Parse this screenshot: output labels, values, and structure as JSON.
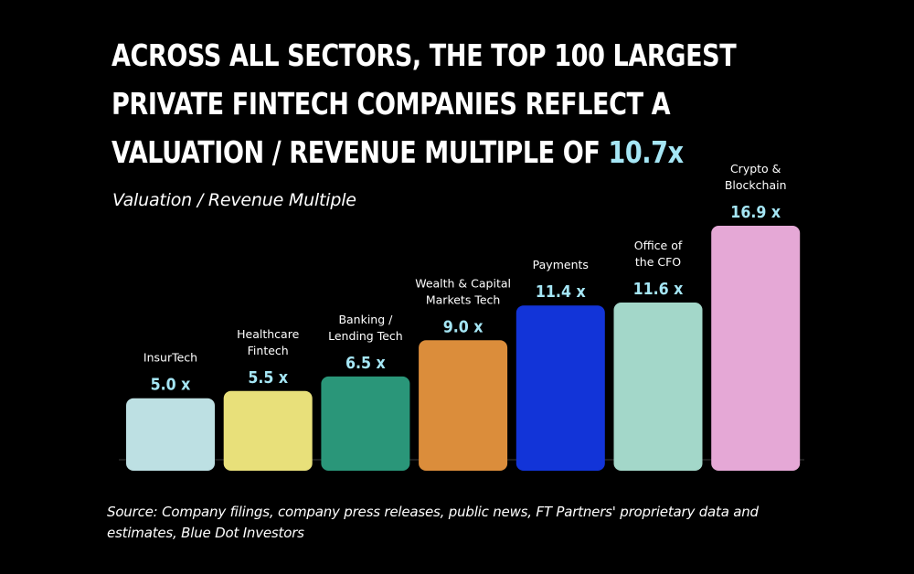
{
  "title": {
    "lines": [
      "ACROSS ALL SECTORS, THE TOP 100 LARGEST",
      "PRIVATE FINTECH COMPANIES REFLECT A",
      "VALUATION / REVENUE MULTIPLE OF "
    ],
    "highlight": "10.7x",
    "highlight_color": "#a5e6f5"
  },
  "subtitle": "Valuation / Revenue Multiple",
  "source": "Source: Company filings, company press releases, public news, FT Partners' proprietary data and estimates, Blue Dot Investors",
  "chart_data": {
    "type": "bar",
    "categories": [
      [
        "InsurTech"
      ],
      [
        "Healthcare",
        "Fintech"
      ],
      [
        "Banking /",
        "Lending Tech"
      ],
      [
        "Wealth & Capital",
        "Markets Tech"
      ],
      [
        "Payments"
      ],
      [
        "Office of",
        "the CFO"
      ],
      [
        "Crypto &",
        "Blockchain"
      ]
    ],
    "values": [
      5.0,
      5.5,
      6.5,
      9.0,
      11.4,
      11.6,
      16.9
    ],
    "value_labels": [
      "5.0 x",
      "5.5 x",
      "6.5 x",
      "9.0 x",
      "11.4 x",
      "11.6 x",
      "16.9 x"
    ],
    "colors": [
      "#bde0e3",
      "#e8e07a",
      "#2a9679",
      "#db8d3b",
      "#1234d8",
      "#a3d7c9",
      "#e5a8d6"
    ],
    "value_label_color": "#a5e6f5",
    "ylim": [
      0,
      16.9
    ],
    "grid": false,
    "legend": "none"
  }
}
